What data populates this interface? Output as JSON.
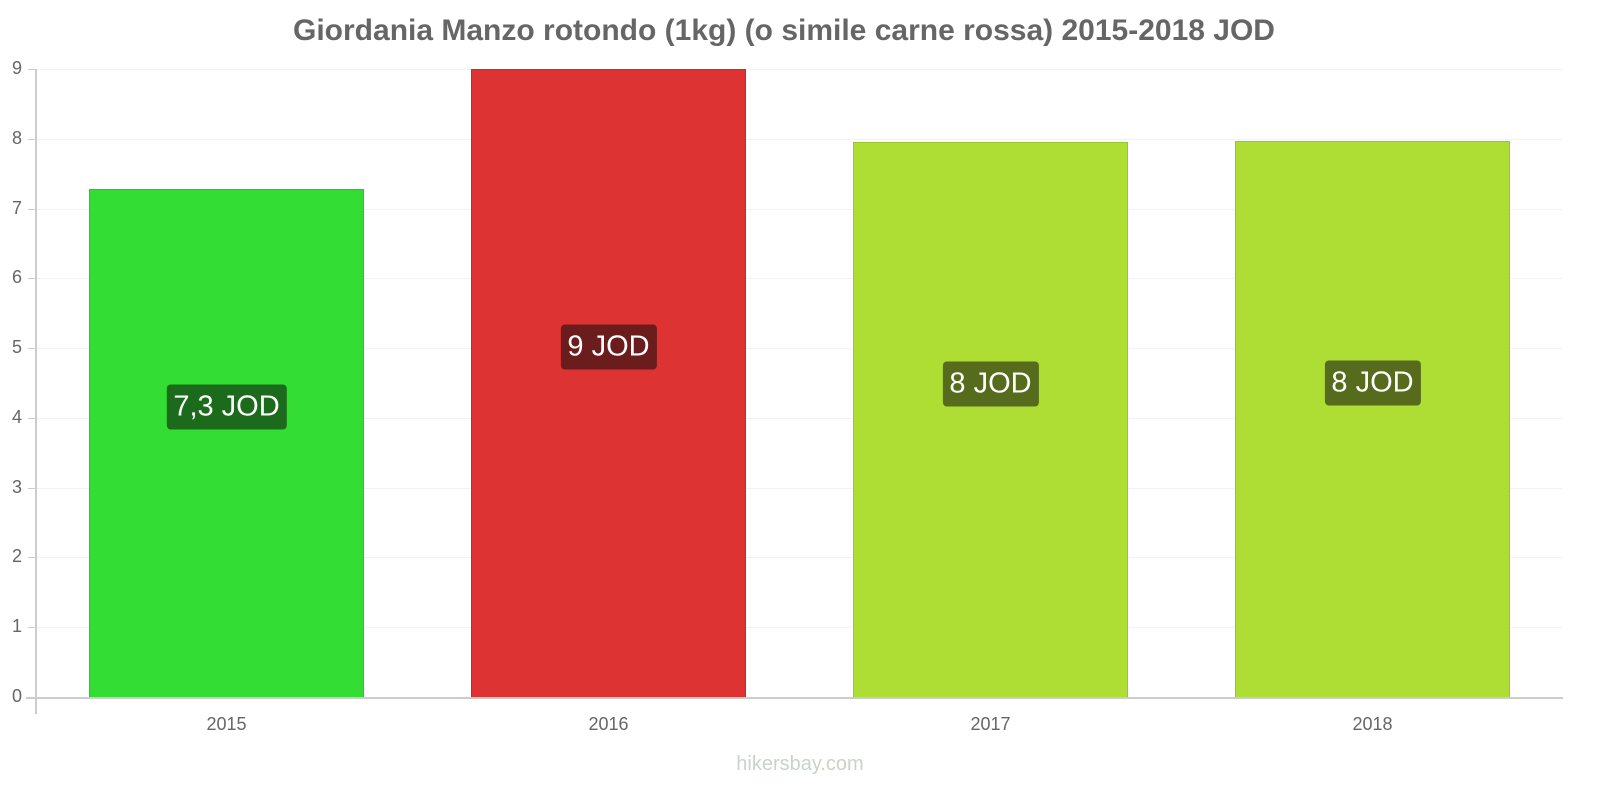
{
  "title": "Giordania Manzo rotondo (1kg) (o simile carne rossa) 2015-2018 JOD",
  "footer": "hikersbay.com",
  "y_ticks": [
    "0",
    "1",
    "2",
    "3",
    "4",
    "5",
    "6",
    "7",
    "8",
    "9"
  ],
  "bars": [
    {
      "year": "2015",
      "value": 7.28,
      "label": "7,3 JOD",
      "fill": "#33dd33",
      "border": "#2cc42c",
      "label_bg": "#1c6b1c"
    },
    {
      "year": "2016",
      "value": 9.0,
      "label": "9 JOD",
      "fill": "#dd3333",
      "border": "#c42c2c",
      "label_bg": "#6b1c1c"
    },
    {
      "year": "2017",
      "value": 7.95,
      "label": "8 JOD",
      "fill": "#aedd33",
      "border": "#9cc42c",
      "label_bg": "#566b1c"
    },
    {
      "year": "2018",
      "value": 7.97,
      "label": "8 JOD",
      "fill": "#aedd33",
      "border": "#9cc42c",
      "label_bg": "#566b1c"
    }
  ],
  "chart_data": {
    "type": "bar",
    "title": "Giordania Manzo rotondo (1kg) (o simile carne rossa) 2015-2018 JOD",
    "categories": [
      "2015",
      "2016",
      "2017",
      "2018"
    ],
    "values": [
      7.28,
      9.0,
      7.95,
      7.97
    ],
    "data_labels": [
      "7,3 JOD",
      "9 JOD",
      "8 JOD",
      "8 JOD"
    ],
    "xlabel": "",
    "ylabel": "",
    "ylim": [
      0,
      9
    ],
    "yticks": [
      0,
      1,
      2,
      3,
      4,
      5,
      6,
      7,
      8,
      9
    ],
    "grid": true,
    "legend": "none",
    "source": "hikersbay.com"
  }
}
